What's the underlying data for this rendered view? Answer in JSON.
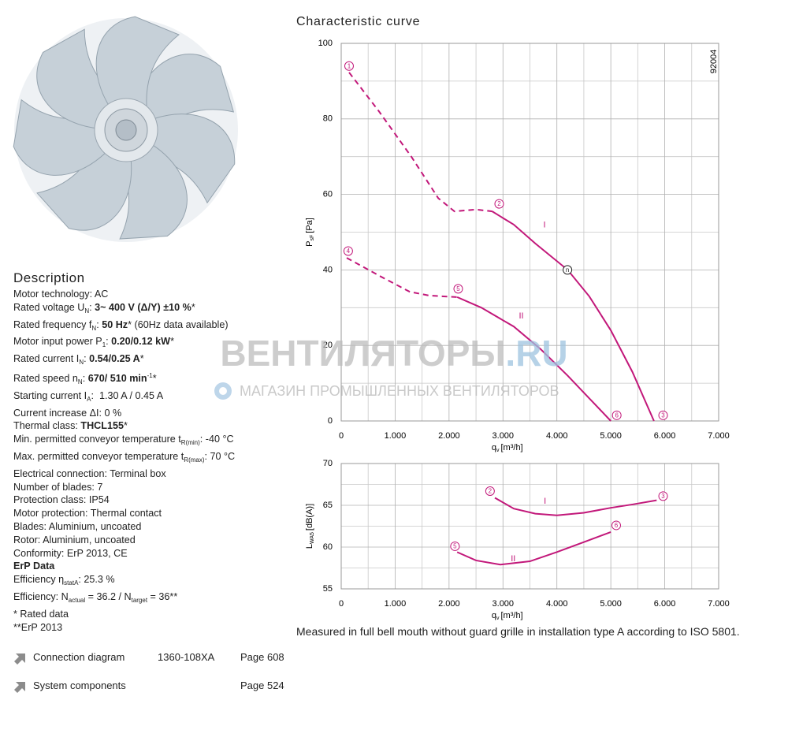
{
  "description": {
    "heading": "Description",
    "lines": [
      "Motor technology: AC",
      [
        "Rated voltage U",
        {
          "sub": "N"
        },
        ": ",
        {
          "b": "3~ 400 V (Δ/Y) ±10 %"
        },
        "*"
      ],
      [
        "Rated frequency f",
        {
          "sub": "N"
        },
        ": ",
        {
          "b": "50 Hz"
        },
        "* (60Hz data available)"
      ],
      [
        "Motor input power P",
        {
          "sub": "1"
        },
        ": ",
        {
          "b": "0.20/0.12 kW"
        },
        "*"
      ],
      [
        "Rated current I",
        {
          "sub": "N"
        },
        ": ",
        {
          "b": "0.54/0.25 A"
        },
        "*"
      ],
      [
        "Rated speed n",
        {
          "sub": "N"
        },
        ": ",
        {
          "b": "670/ 510 min"
        },
        {
          "sup": "-1"
        },
        "*"
      ],
      [
        "Starting current I",
        {
          "sub": "A"
        },
        ":  1.30 A / 0.45 A"
      ],
      "Current increase ΔI: 0 %",
      [
        "Thermal class: ",
        {
          "b": "THCL155"
        },
        "*"
      ],
      [
        "Min. permitted conveyor temperature t",
        {
          "sub": "R(min)"
        },
        ": -40 °C"
      ],
      [
        "Max. permitted conveyor temperature t",
        {
          "sub": "R(max)"
        },
        ": 70 °C"
      ],
      "Electrical connection: Terminal box",
      "Number of blades: 7",
      "Protection class: IP54",
      "Motor protection: Thermal contact",
      "Blades: Aluminium, uncoated",
      "Rotor: Aluminium, uncoated",
      "Conformity: ErP 2013, CE",
      [
        {
          "b": "ErP Data"
        }
      ],
      [
        "Efficiency η",
        {
          "sub": "statA"
        },
        ": 25.3 %"
      ],
      [
        "Efficiency: N",
        {
          "sub": "actual"
        },
        " = 36.2 / N",
        {
          "sub": "target"
        },
        " = 36**"
      ],
      "* Rated data",
      "**ErP 2013"
    ]
  },
  "links": [
    {
      "label": "Connection diagram",
      "code": "1360-108XA",
      "page": "Page 608"
    },
    {
      "label": "System components",
      "page": "Page 524"
    }
  ],
  "title": "Characteristic curve",
  "note": "Measured in full bell mouth without guard grille in installation type A according to ISO 5801.",
  "watermark": {
    "main": "ВЕНТИЛЯТОРЫ",
    "domain": ".RU",
    "tagline": "МАГАЗИН ПРОМЫШЛЕННЫХ ВЕНТИЛЯТОРОВ"
  },
  "chart_data": [
    {
      "type": "line",
      "code": "92004",
      "xlabel": {
        "main": "q",
        "sub": "v",
        "unit": "[m³/h]"
      },
      "ylabel": {
        "main": "P",
        "sub": "sF",
        "unit": "[Pa]"
      },
      "xlim": [
        0,
        7000
      ],
      "ylim": [
        0,
        100
      ],
      "xticks": [
        0,
        {
          "value": 1000,
          "label": "1.000"
        },
        {
          "value": 2000,
          "label": "2.000"
        },
        {
          "value": 3000,
          "label": "3.000"
        },
        {
          "value": 4000,
          "label": "4.000"
        },
        {
          "value": 5000,
          "label": "5.000"
        },
        {
          "value": 6000,
          "label": "6.000"
        },
        {
          "value": 7000,
          "label": "7.000"
        }
      ],
      "yticks": [
        0,
        20,
        40,
        60,
        80,
        100
      ],
      "minor_xticks": [
        500,
        1500,
        2500,
        3500,
        4500,
        5500,
        6500
      ],
      "minor_yticks": [
        10,
        30,
        50,
        70,
        90
      ],
      "grid": true,
      "series": [
        {
          "color": "#c2187a",
          "dashed": true,
          "x": [
            146,
            700,
            1300,
            1800,
            2100,
            2500,
            2800
          ],
          "values": [
            92.3,
            82,
            70,
            59,
            55.5,
            56,
            55.5
          ]
        },
        {
          "color": "#c2187a",
          "x": [
            2800,
            3200,
            3600,
            4200,
            4600,
            5000,
            5400,
            5800
          ],
          "values": [
            55.5,
            52,
            47,
            40,
            33,
            24,
            13,
            0
          ]
        },
        {
          "color": "#c2187a",
          "dashed": true,
          "x": [
            102,
            700,
            1272,
            1637,
            2150
          ],
          "values": [
            43.2,
            38.5,
            34.2,
            33.2,
            32.8
          ]
        },
        {
          "color": "#c2187a",
          "x": [
            2150,
            2600,
            3200,
            3700,
            4200,
            4600,
            5000
          ],
          "values": [
            32.8,
            30,
            25,
            19,
            12,
            6,
            0
          ]
        }
      ],
      "annotations": [
        {
          "text": "1",
          "circled": true,
          "color": "#c2187a",
          "x": 146,
          "y": 94
        },
        {
          "text": "2",
          "circled": true,
          "color": "#c2187a",
          "x": 2930,
          "y": 57.5
        },
        {
          "text": "3",
          "circled": true,
          "color": "#c2187a",
          "x": 5970,
          "y": 1.5
        },
        {
          "text": "4",
          "circled": true,
          "color": "#c2187a",
          "x": 130,
          "y": 45
        },
        {
          "text": "5",
          "circled": true,
          "color": "#c2187a",
          "x": 2170,
          "y": 35
        },
        {
          "text": "6",
          "circled": true,
          "color": "#c2187a",
          "x": 5110,
          "y": 1.5
        },
        {
          "text": "n",
          "circled": true,
          "color": "#222222",
          "x": 4196,
          "y": 40
        },
        {
          "text": "I",
          "color": "#c2187a",
          "x": 3770,
          "y": 52
        },
        {
          "text": "II",
          "color": "#c2187a",
          "x": 3340,
          "y": 27.8
        }
      ]
    },
    {
      "type": "line",
      "xlabel": {
        "main": "q",
        "sub": "v",
        "unit": "[m³/h]"
      },
      "ylabel": {
        "main": "L",
        "sub": "WA5",
        "unit": "[dB(A)]"
      },
      "xlim": [
        0,
        7000
      ],
      "ylim": [
        55,
        70
      ],
      "xticks": [
        0,
        {
          "value": 1000,
          "label": "1.000"
        },
        {
          "value": 2000,
          "label": "2.000"
        },
        {
          "value": 3000,
          "label": "3.000"
        },
        {
          "value": 4000,
          "label": "4.000"
        },
        {
          "value": 5000,
          "label": "5.000"
        },
        {
          "value": 6000,
          "label": "6.000"
        },
        {
          "value": 7000,
          "label": "7.000"
        }
      ],
      "yticks": [
        55,
        60,
        65,
        70
      ],
      "minor_xticks": [
        500,
        1500,
        2500,
        3500,
        4500,
        5500,
        6500
      ],
      "minor_yticks": [
        57.5,
        62.5,
        67.5
      ],
      "grid": true,
      "series": [
        {
          "color": "#c2187a",
          "x": [
            2850,
            3200,
            3600,
            4000,
            4500,
            5000,
            5400,
            5850
          ],
          "values": [
            65.9,
            64.6,
            64.0,
            63.8,
            64.1,
            64.7,
            65.1,
            65.6
          ]
        },
        {
          "color": "#c2187a",
          "x": [
            2150,
            2500,
            2950,
            3500,
            4000,
            4500,
            5000
          ],
          "values": [
            59.4,
            58.4,
            57.9,
            58.3,
            59.4,
            60.6,
            61.8
          ]
        }
      ],
      "annotations": [
        {
          "text": "2",
          "circled": true,
          "color": "#c2187a",
          "x": 2760,
          "y": 66.7
        },
        {
          "text": "3",
          "circled": true,
          "color": "#c2187a",
          "x": 5970,
          "y": 66.1
        },
        {
          "text": "5",
          "circled": true,
          "color": "#c2187a",
          "x": 2110,
          "y": 60.1
        },
        {
          "text": "6",
          "circled": true,
          "color": "#c2187a",
          "x": 5100,
          "y": 62.6
        },
        {
          "text": "I",
          "color": "#c2187a",
          "x": 3780,
          "y": 65.5
        },
        {
          "text": "II",
          "color": "#c2187a",
          "x": 3190,
          "y": 58.6
        }
      ]
    }
  ]
}
